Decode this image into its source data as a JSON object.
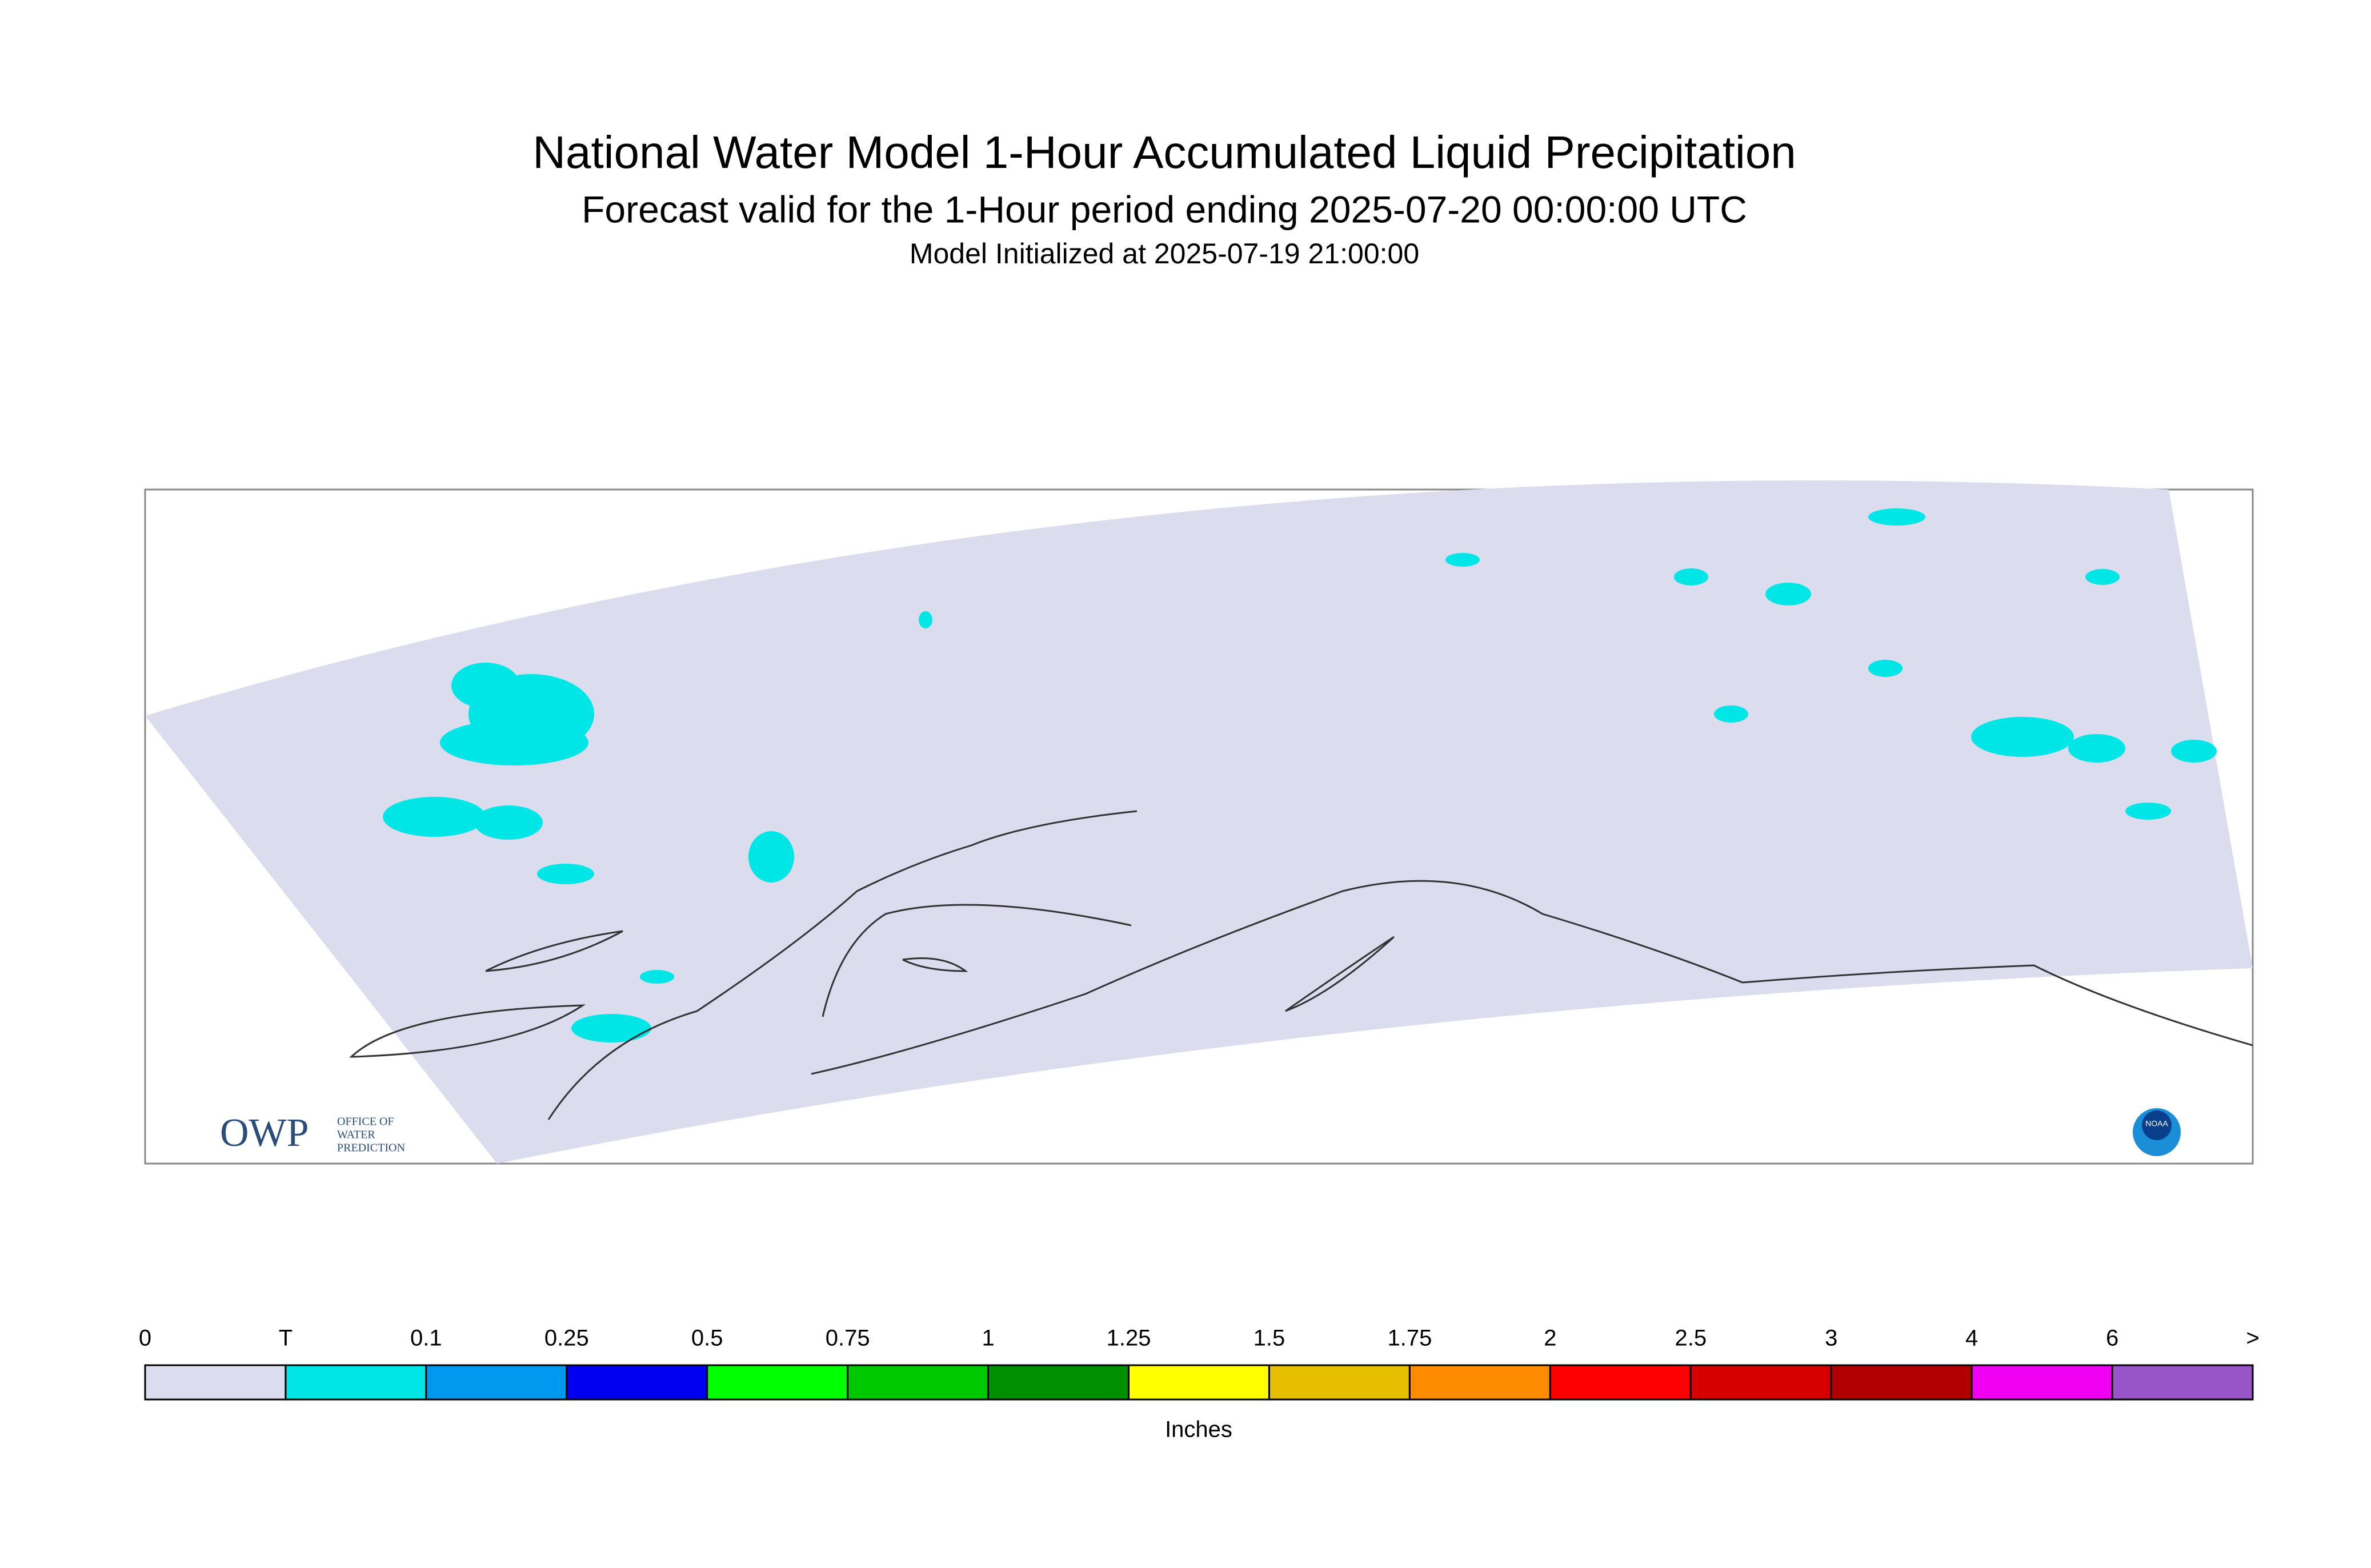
{
  "header": {
    "title": "National Water Model 1-Hour Accumulated Liquid Precipitation",
    "subtitle": "Forecast valid for the 1-Hour period ending 2025-07-20 00:00:00 UTC",
    "initialized": "Model Initialized at 2025-07-19 21:00:00"
  },
  "legend": {
    "labels": [
      "0",
      "T",
      "0.1",
      "0.25",
      "0.5",
      "0.75",
      "1",
      "1.25",
      "1.5",
      "1.75",
      "2",
      "2.5",
      "3",
      "4",
      "6",
      ">"
    ],
    "colors": [
      "#dcdcef",
      "#00e6e6",
      "#0099f0",
      "#0000f0",
      "#00ff00",
      "#00c800",
      "#008f00",
      "#ffff00",
      "#e6c000",
      "#ff8c00",
      "#ff0000",
      "#d70000",
      "#b20000",
      "#f000f0",
      "#9955c8"
    ],
    "unit": "Inches"
  },
  "logos": {
    "owp": "OWP",
    "owp_lines": [
      "OFFICE OF",
      "WATER",
      "PREDICTION"
    ],
    "noaa": "NOAA"
  }
}
